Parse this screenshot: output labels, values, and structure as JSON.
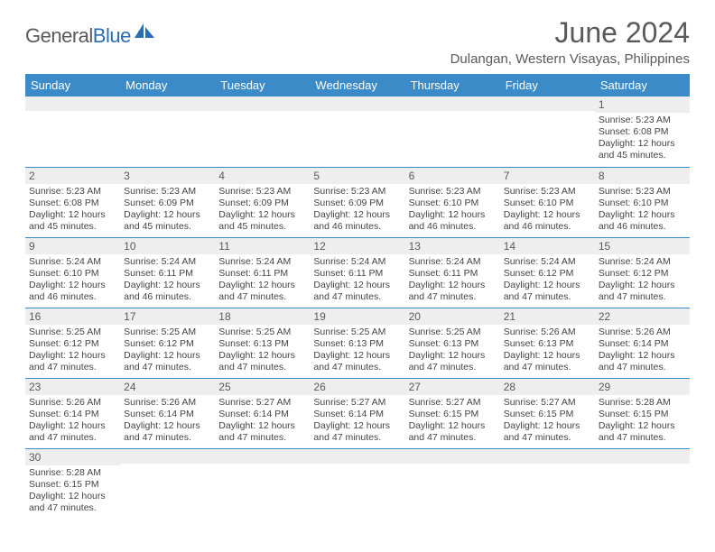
{
  "logo": {
    "text1": "General",
    "text2": "Blue"
  },
  "title": "June 2024",
  "location": "Dulangan, Western Visayas, Philippines",
  "colors": {
    "header_bg": "#3b8bc9",
    "header_fg": "#ffffff",
    "border": "#3b8bc9",
    "daynum_bg": "#eeeeee",
    "text_muted": "#5a5a5a",
    "text_body": "#444444",
    "logo_gray": "#5a5a5a",
    "logo_blue": "#2a6db0",
    "page_bg": "#ffffff"
  },
  "weekdays": [
    "Sunday",
    "Monday",
    "Tuesday",
    "Wednesday",
    "Thursday",
    "Friday",
    "Saturday"
  ],
  "weeks": [
    [
      {
        "n": "",
        "lines": []
      },
      {
        "n": "",
        "lines": []
      },
      {
        "n": "",
        "lines": []
      },
      {
        "n": "",
        "lines": []
      },
      {
        "n": "",
        "lines": []
      },
      {
        "n": "",
        "lines": []
      },
      {
        "n": "1",
        "lines": [
          "Sunrise: 5:23 AM",
          "Sunset: 6:08 PM",
          "Daylight: 12 hours and 45 minutes."
        ]
      }
    ],
    [
      {
        "n": "2",
        "lines": [
          "Sunrise: 5:23 AM",
          "Sunset: 6:08 PM",
          "Daylight: 12 hours and 45 minutes."
        ]
      },
      {
        "n": "3",
        "lines": [
          "Sunrise: 5:23 AM",
          "Sunset: 6:09 PM",
          "Daylight: 12 hours and 45 minutes."
        ]
      },
      {
        "n": "4",
        "lines": [
          "Sunrise: 5:23 AM",
          "Sunset: 6:09 PM",
          "Daylight: 12 hours and 45 minutes."
        ]
      },
      {
        "n": "5",
        "lines": [
          "Sunrise: 5:23 AM",
          "Sunset: 6:09 PM",
          "Daylight: 12 hours and 46 minutes."
        ]
      },
      {
        "n": "6",
        "lines": [
          "Sunrise: 5:23 AM",
          "Sunset: 6:10 PM",
          "Daylight: 12 hours and 46 minutes."
        ]
      },
      {
        "n": "7",
        "lines": [
          "Sunrise: 5:23 AM",
          "Sunset: 6:10 PM",
          "Daylight: 12 hours and 46 minutes."
        ]
      },
      {
        "n": "8",
        "lines": [
          "Sunrise: 5:23 AM",
          "Sunset: 6:10 PM",
          "Daylight: 12 hours and 46 minutes."
        ]
      }
    ],
    [
      {
        "n": "9",
        "lines": [
          "Sunrise: 5:24 AM",
          "Sunset: 6:10 PM",
          "Daylight: 12 hours and 46 minutes."
        ]
      },
      {
        "n": "10",
        "lines": [
          "Sunrise: 5:24 AM",
          "Sunset: 6:11 PM",
          "Daylight: 12 hours and 46 minutes."
        ]
      },
      {
        "n": "11",
        "lines": [
          "Sunrise: 5:24 AM",
          "Sunset: 6:11 PM",
          "Daylight: 12 hours and 47 minutes."
        ]
      },
      {
        "n": "12",
        "lines": [
          "Sunrise: 5:24 AM",
          "Sunset: 6:11 PM",
          "Daylight: 12 hours and 47 minutes."
        ]
      },
      {
        "n": "13",
        "lines": [
          "Sunrise: 5:24 AM",
          "Sunset: 6:11 PM",
          "Daylight: 12 hours and 47 minutes."
        ]
      },
      {
        "n": "14",
        "lines": [
          "Sunrise: 5:24 AM",
          "Sunset: 6:12 PM",
          "Daylight: 12 hours and 47 minutes."
        ]
      },
      {
        "n": "15",
        "lines": [
          "Sunrise: 5:24 AM",
          "Sunset: 6:12 PM",
          "Daylight: 12 hours and 47 minutes."
        ]
      }
    ],
    [
      {
        "n": "16",
        "lines": [
          "Sunrise: 5:25 AM",
          "Sunset: 6:12 PM",
          "Daylight: 12 hours and 47 minutes."
        ]
      },
      {
        "n": "17",
        "lines": [
          "Sunrise: 5:25 AM",
          "Sunset: 6:12 PM",
          "Daylight: 12 hours and 47 minutes."
        ]
      },
      {
        "n": "18",
        "lines": [
          "Sunrise: 5:25 AM",
          "Sunset: 6:13 PM",
          "Daylight: 12 hours and 47 minutes."
        ]
      },
      {
        "n": "19",
        "lines": [
          "Sunrise: 5:25 AM",
          "Sunset: 6:13 PM",
          "Daylight: 12 hours and 47 minutes."
        ]
      },
      {
        "n": "20",
        "lines": [
          "Sunrise: 5:25 AM",
          "Sunset: 6:13 PM",
          "Daylight: 12 hours and 47 minutes."
        ]
      },
      {
        "n": "21",
        "lines": [
          "Sunrise: 5:26 AM",
          "Sunset: 6:13 PM",
          "Daylight: 12 hours and 47 minutes."
        ]
      },
      {
        "n": "22",
        "lines": [
          "Sunrise: 5:26 AM",
          "Sunset: 6:14 PM",
          "Daylight: 12 hours and 47 minutes."
        ]
      }
    ],
    [
      {
        "n": "23",
        "lines": [
          "Sunrise: 5:26 AM",
          "Sunset: 6:14 PM",
          "Daylight: 12 hours and 47 minutes."
        ]
      },
      {
        "n": "24",
        "lines": [
          "Sunrise: 5:26 AM",
          "Sunset: 6:14 PM",
          "Daylight: 12 hours and 47 minutes."
        ]
      },
      {
        "n": "25",
        "lines": [
          "Sunrise: 5:27 AM",
          "Sunset: 6:14 PM",
          "Daylight: 12 hours and 47 minutes."
        ]
      },
      {
        "n": "26",
        "lines": [
          "Sunrise: 5:27 AM",
          "Sunset: 6:14 PM",
          "Daylight: 12 hours and 47 minutes."
        ]
      },
      {
        "n": "27",
        "lines": [
          "Sunrise: 5:27 AM",
          "Sunset: 6:15 PM",
          "Daylight: 12 hours and 47 minutes."
        ]
      },
      {
        "n": "28",
        "lines": [
          "Sunrise: 5:27 AM",
          "Sunset: 6:15 PM",
          "Daylight: 12 hours and 47 minutes."
        ]
      },
      {
        "n": "29",
        "lines": [
          "Sunrise: 5:28 AM",
          "Sunset: 6:15 PM",
          "Daylight: 12 hours and 47 minutes."
        ]
      }
    ],
    [
      {
        "n": "30",
        "lines": [
          "Sunrise: 5:28 AM",
          "Sunset: 6:15 PM",
          "Daylight: 12 hours and 47 minutes."
        ]
      },
      {
        "n": "",
        "lines": []
      },
      {
        "n": "",
        "lines": []
      },
      {
        "n": "",
        "lines": []
      },
      {
        "n": "",
        "lines": []
      },
      {
        "n": "",
        "lines": []
      },
      {
        "n": "",
        "lines": []
      }
    ]
  ]
}
